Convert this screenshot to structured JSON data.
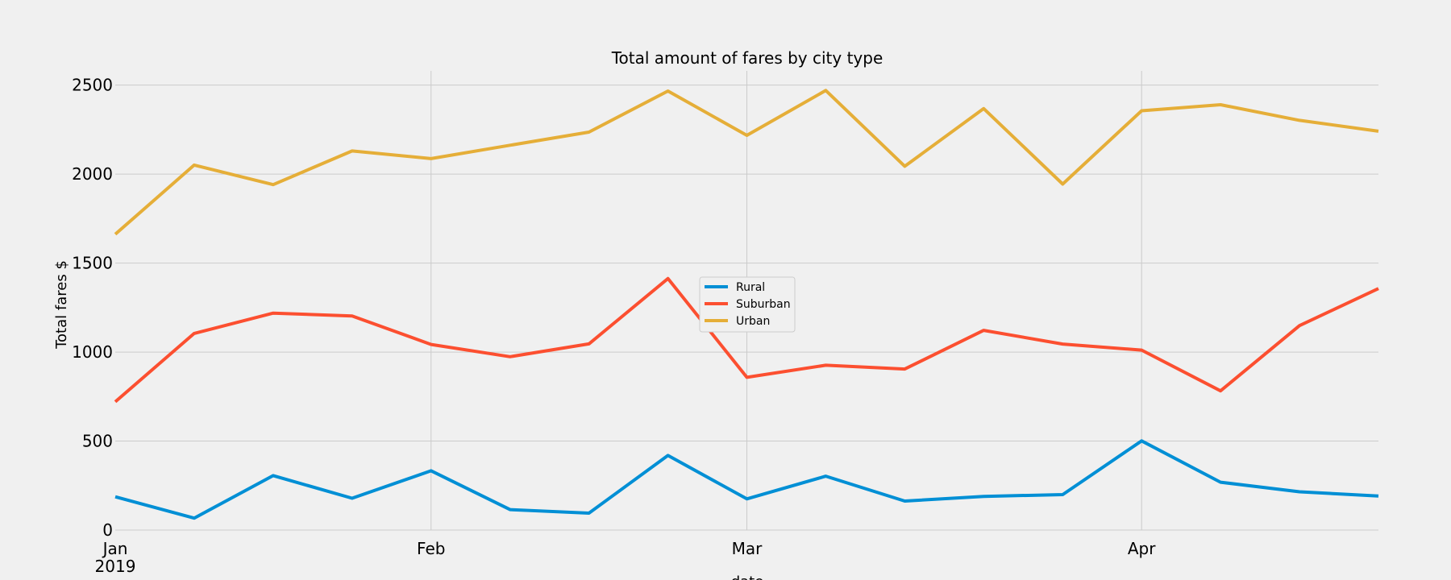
{
  "chart_data": {
    "type": "line",
    "title": "Total amount of fares by city type",
    "xlabel": "date",
    "ylabel": "Total fares $",
    "x": [
      "2019-01-06",
      "2019-01-13",
      "2019-01-20",
      "2019-01-27",
      "2019-02-03",
      "2019-02-10",
      "2019-02-17",
      "2019-02-24",
      "2019-03-03",
      "2019-03-10",
      "2019-03-17",
      "2019-03-24",
      "2019-03-31",
      "2019-04-07",
      "2019-04-14",
      "2019-04-21",
      "2019-04-28"
    ],
    "x_ticks": [
      {
        "date": "2019-01-06",
        "label": "Jan",
        "sublabel": "2019"
      },
      {
        "date": "2019-02-03",
        "label": "Feb",
        "sublabel": ""
      },
      {
        "date": "2019-03-03",
        "label": "Mar",
        "sublabel": ""
      },
      {
        "date": "2019-04-07",
        "label": "Apr",
        "sublabel": ""
      }
    ],
    "xlim": [
      "2019-01-06",
      "2019-04-28"
    ],
    "ylim": [
      0,
      2580
    ],
    "y_ticks": [
      0,
      500,
      1000,
      1500,
      2000,
      2500
    ],
    "grid": true,
    "legend_position": "center",
    "series": [
      {
        "name": "Rural",
        "color": "#008fd5",
        "values": [
          187,
          67,
          306,
          179,
          333,
          115,
          95,
          419,
          175,
          303,
          163,
          189,
          199,
          501,
          269,
          215,
          191
        ]
      },
      {
        "name": "Suburban",
        "color": "#fc4f30",
        "values": [
          721,
          1105,
          1219,
          1203,
          1043,
          974,
          1046,
          1413,
          858,
          926,
          905,
          1122,
          1045,
          1011,
          782,
          1149,
          1357
        ]
      },
      {
        "name": "Urban",
        "color": "#e5ae38",
        "values": [
          1662,
          2051,
          1941,
          2130,
          2087,
          2162,
          2236,
          2467,
          2218,
          2470,
          2044,
          2368,
          1944,
          2356,
          2390,
          2302,
          2241
        ]
      }
    ]
  }
}
